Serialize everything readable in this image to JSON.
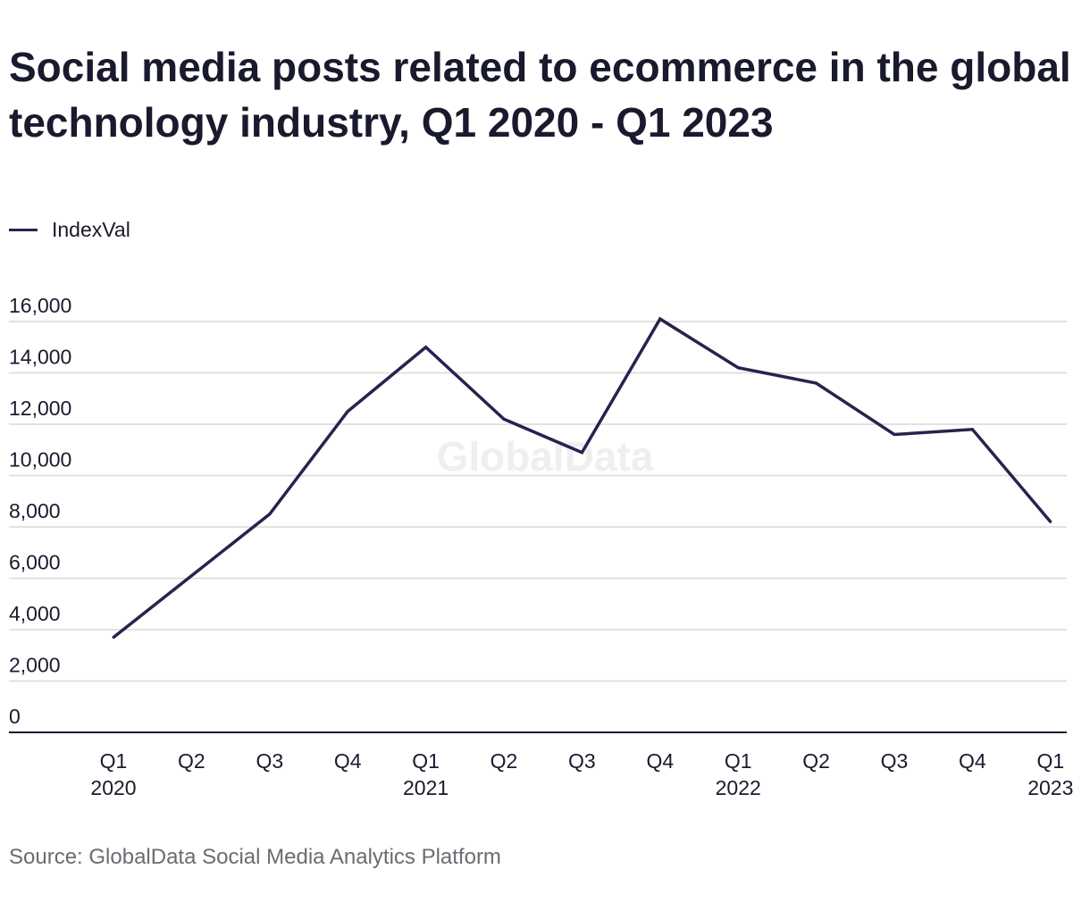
{
  "title": "Social media posts related to ecommerce in the global technology industry, Q1 2020 - Q1 2023",
  "source": "Source: GlobalData Social Media Analytics Platform",
  "watermark": "GlobalData",
  "colors": {
    "line": "#2e1f4f",
    "grid": "#d9d9d9",
    "axis": "#1a1a2e",
    "text": "#1a1a2e",
    "source_text": "#6b6b72",
    "watermark": "#efefef"
  },
  "chart_data": {
    "type": "line",
    "title": "Social media posts related to ecommerce in the global technology industry, Q1 2020 - Q1 2023",
    "xlabel": "",
    "ylabel": "",
    "categories": [
      [
        "Q1",
        "2020"
      ],
      [
        "Q2",
        ""
      ],
      [
        "Q3",
        ""
      ],
      [
        "Q4",
        ""
      ],
      [
        "Q1",
        "2021"
      ],
      [
        "Q2",
        ""
      ],
      [
        "Q3",
        ""
      ],
      [
        "Q4",
        ""
      ],
      [
        "Q1",
        "2022"
      ],
      [
        "Q2",
        ""
      ],
      [
        "Q3",
        ""
      ],
      [
        "Q4",
        ""
      ],
      [
        "Q1",
        "2023"
      ]
    ],
    "series": [
      {
        "name": "IndexVal",
        "values": [
          3700,
          6100,
          8500,
          12500,
          15000,
          12200,
          10900,
          16100,
          14200,
          13600,
          11600,
          11800,
          8200
        ]
      }
    ],
    "ylim": [
      0,
      16000
    ],
    "yticks": [
      0,
      2000,
      4000,
      6000,
      8000,
      10000,
      12000,
      14000,
      16000
    ],
    "ytick_labels": [
      "0",
      "2,000",
      "4,000",
      "6,000",
      "8,000",
      "10,000",
      "12,000",
      "14,000",
      "16,000"
    ],
    "grid": true,
    "legend_position": "top-left"
  }
}
